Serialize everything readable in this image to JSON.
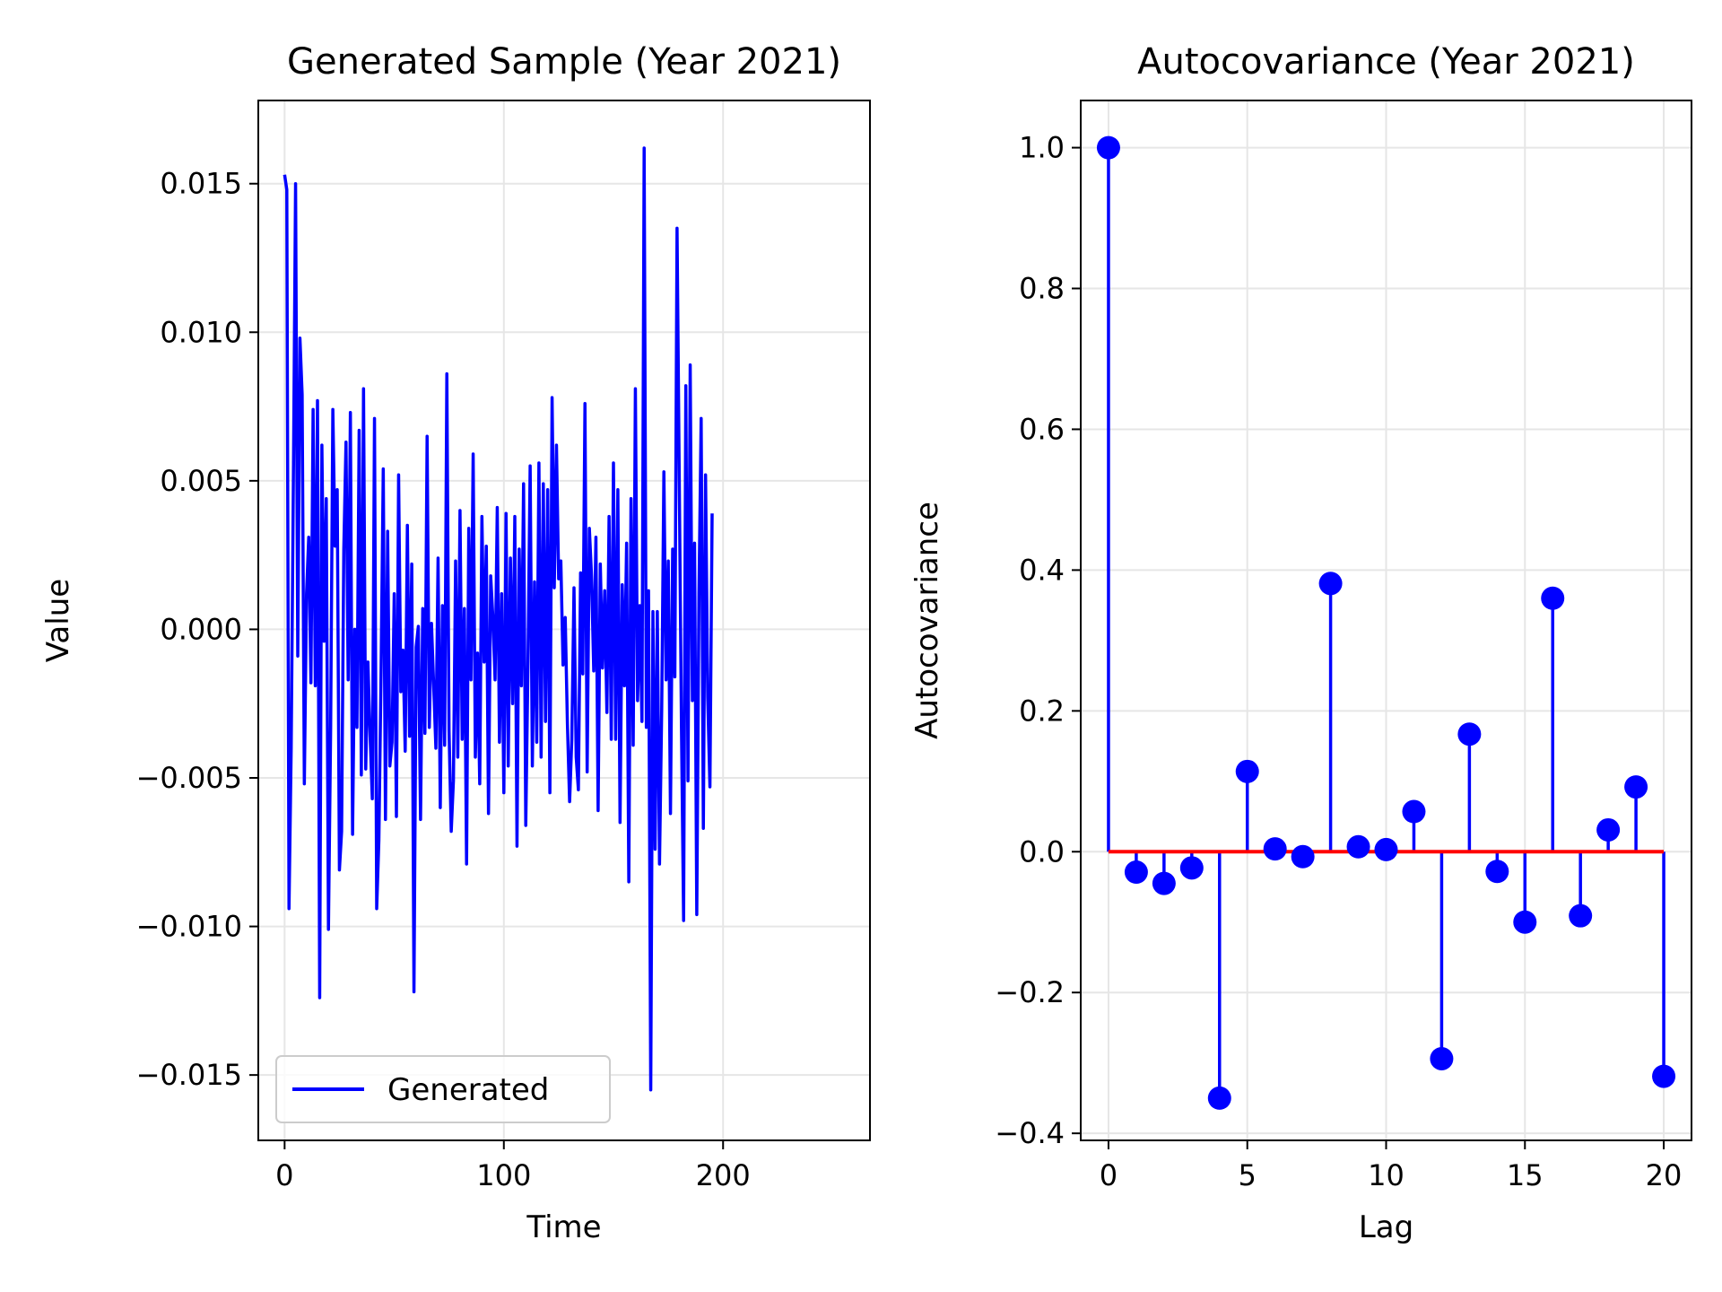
{
  "chart_data": [
    {
      "type": "line",
      "title": "Generated Sample (Year 2021)",
      "xlabel": "Time",
      "ylabel": "Value",
      "xlim": [
        -12,
        267
      ],
      "ylim": [
        -0.0172,
        0.0178
      ],
      "xticks": [
        0,
        100,
        200
      ],
      "yticks": [
        0.015,
        0.01,
        0.005,
        0.0,
        -0.005,
        -0.01,
        -0.015
      ],
      "ytick_labels": [
        "0.015",
        "0.010",
        "0.005",
        "0.000",
        "−0.005",
        "−0.010",
        "−0.015"
      ],
      "grid": true,
      "legend_position": "lower-left",
      "series": [
        {
          "name": "Generated",
          "color": "#0000ff",
          "x_start": 0,
          "x_step": 1,
          "values": [
            0.0153,
            0.0148,
            -0.0094,
            -0.004,
            0.005,
            0.015,
            -0.0009,
            0.0098,
            0.0079,
            -0.0052,
            0.0012,
            0.0031,
            -0.0018,
            0.0074,
            -0.0019,
            0.0077,
            -0.0124,
            0.0062,
            -0.0004,
            0.0044,
            -0.0101,
            -0.0033,
            0.0074,
            0.0028,
            0.0047,
            -0.0081,
            -0.0068,
            0.0027,
            0.0063,
            -0.0017,
            0.0073,
            -0.0069,
            0.0,
            -0.0033,
            0.0067,
            -0.0049,
            0.0081,
            -0.0047,
            -0.0011,
            -0.0036,
            -0.0057,
            0.0071,
            -0.0094,
            -0.0071,
            -0.0014,
            0.0054,
            -0.0064,
            0.0033,
            -0.0046,
            -0.0038,
            0.0012,
            -0.0063,
            0.0052,
            -0.0021,
            -0.0007,
            -0.0041,
            0.0035,
            -0.0036,
            0.0022,
            -0.0122,
            -0.0006,
            0.0001,
            -0.0064,
            0.0007,
            -0.0035,
            0.0065,
            -0.0033,
            0.0002,
            -0.0019,
            -0.004,
            0.0024,
            -0.006,
            0.0008,
            -0.0039,
            0.0086,
            -0.0034,
            -0.0068,
            -0.0051,
            0.0023,
            -0.0043,
            0.004,
            -0.0037,
            0.0007,
            -0.0079,
            0.0034,
            -0.0017,
            0.0059,
            -0.0043,
            -0.0008,
            -0.0052,
            0.0038,
            -0.0011,
            0.0028,
            -0.0062,
            0.0018,
            0.0004,
            -0.0017,
            0.0041,
            -0.0038,
            0.0012,
            -0.0055,
            0.0039,
            -0.0046,
            0.0024,
            -0.0025,
            0.0038,
            -0.0073,
            0.0027,
            -0.0019,
            0.0049,
            -0.0066,
            -0.0012,
            0.0055,
            -0.0046,
            0.0016,
            -0.0038,
            0.0056,
            -0.0043,
            0.0049,
            -0.0031,
            0.0047,
            -0.0055,
            0.0078,
            0.0014,
            0.0062,
            0.0017,
            0.0023,
            -0.0012,
            0.0004,
            -0.0032,
            -0.0058,
            -0.0037,
            0.0014,
            -0.0043,
            -0.0054,
            0.0019,
            -0.0015,
            0.0076,
            -0.0048,
            0.0034,
            0.0018,
            -0.0014,
            0.0031,
            -0.0061,
            0.0022,
            -0.0013,
            0.0013,
            -0.0028,
            0.0038,
            -0.0037,
            0.0056,
            -0.0037,
            0.0047,
            -0.0065,
            0.0015,
            -0.0019,
            0.0029,
            -0.0085,
            0.0044,
            -0.0039,
            0.0081,
            -0.0024,
            0.0008,
            -0.0031,
            0.0162,
            -0.0033,
            0.0013,
            -0.0155,
            0.0006,
            -0.0074,
            0.0006,
            -0.0079,
            -0.0027,
            0.0053,
            -0.0017,
            0.0023,
            -0.0062,
            0.0027,
            -0.0016,
            0.0135,
            0.0052,
            -0.0032,
            -0.0098,
            0.0082,
            -0.0051,
            0.0089,
            -0.0024,
            0.0029,
            -0.0096,
            0.0012,
            0.0071,
            -0.0067,
            0.0052,
            -0.0023,
            -0.0053,
            0.0039
          ]
        }
      ]
    },
    {
      "type": "stem",
      "title": "Autocovariance (Year 2021)",
      "xlabel": "Lag",
      "ylabel": "Autocovariance",
      "xlim": [
        -1,
        21
      ],
      "ylim": [
        -0.41,
        1.067
      ],
      "xticks": [
        0,
        5,
        10,
        15,
        20
      ],
      "yticks": [
        1.0,
        0.8,
        0.6,
        0.4,
        0.2,
        0.0,
        -0.2,
        -0.4
      ],
      "ytick_labels": [
        "1.0",
        "0.8",
        "0.6",
        "0.4",
        "0.2",
        "0.0",
        "−0.2",
        "−0.4"
      ],
      "grid": true,
      "stem_color": "#0000ff",
      "baseline_color": "#ff0000",
      "x": [
        0,
        1,
        2,
        3,
        4,
        5,
        6,
        7,
        8,
        9,
        10,
        11,
        12,
        13,
        14,
        15,
        16,
        17,
        18,
        19,
        20
      ],
      "values": [
        1.0,
        -0.029,
        -0.045,
        -0.023,
        -0.35,
        0.114,
        0.004,
        -0.007,
        0.381,
        0.007,
        0.003,
        0.057,
        -0.294,
        0.167,
        -0.028,
        -0.1,
        0.36,
        -0.091,
        0.031,
        0.092,
        -0.319
      ]
    }
  ]
}
